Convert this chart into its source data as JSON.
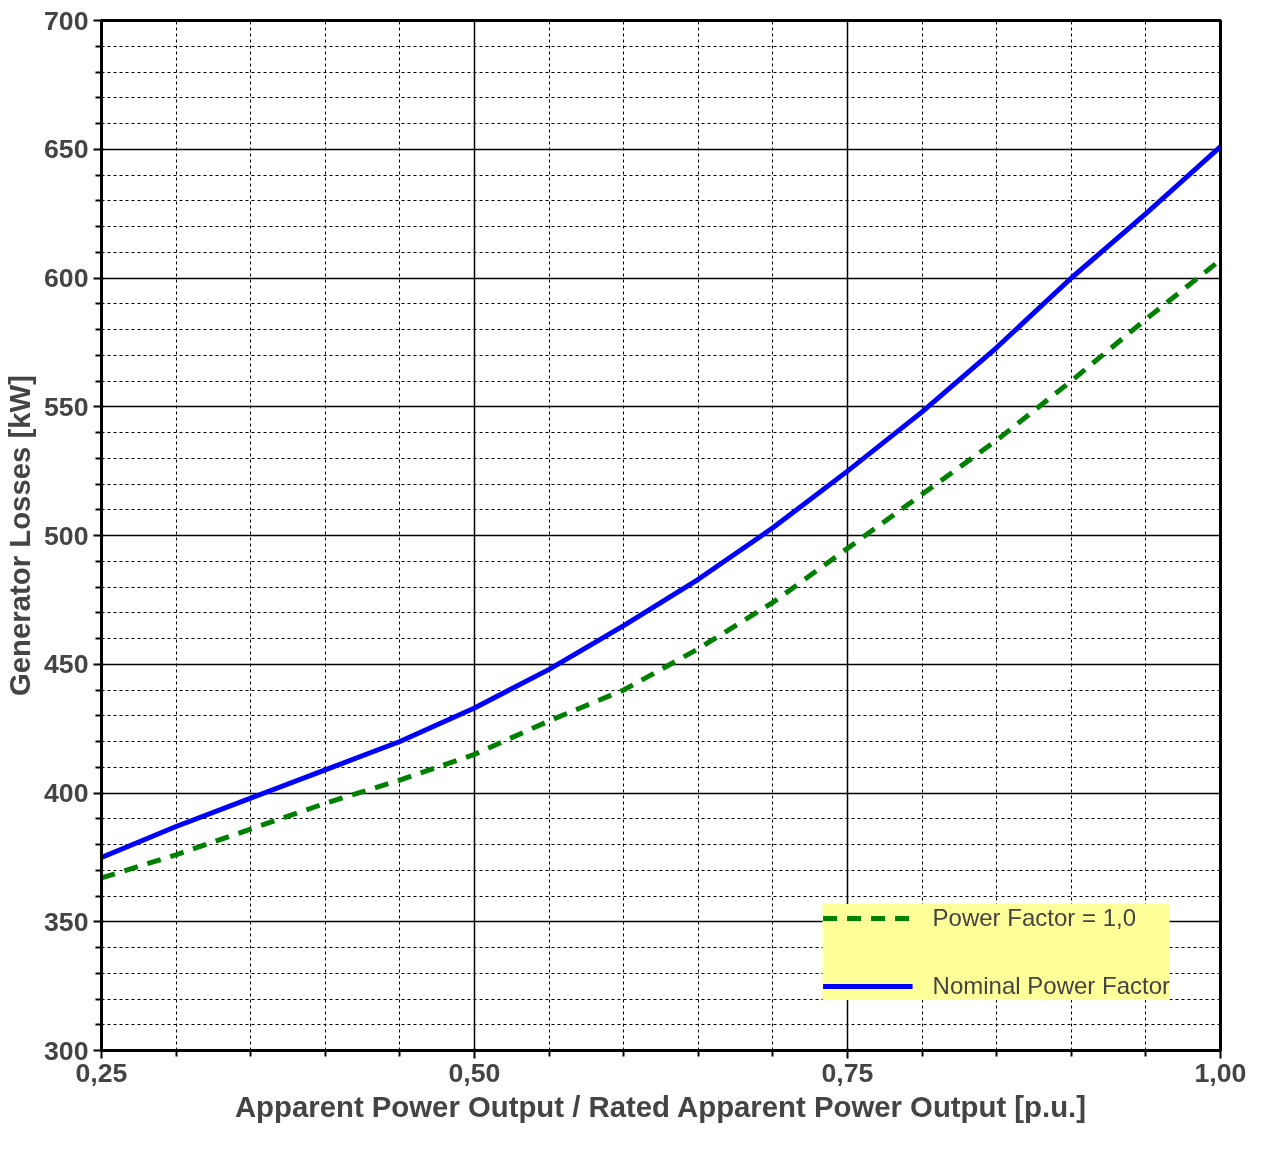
{
  "chart_data": {
    "type": "line",
    "xlabel": "Apparent Power Output / Rated Apparent Power Output [p.u.]",
    "ylabel": "Generator Losses [kW]",
    "x": [
      0.25,
      0.3,
      0.35,
      0.4,
      0.45,
      0.5,
      0.55,
      0.6,
      0.65,
      0.7,
      0.75,
      0.8,
      0.85,
      0.9,
      0.95,
      1.0
    ],
    "series": [
      {
        "name": "Power Factor = 1,0",
        "color": "#008000",
        "line_style": "dashed",
        "values": [
          367,
          376,
          386,
          396,
          405,
          415,
          428,
          440,
          456,
          474,
          495,
          516,
          537,
          560,
          584,
          607
        ]
      },
      {
        "name": "Nominal Power Factor",
        "color": "#0000ff",
        "line_style": "solid",
        "values": [
          375,
          387,
          398,
          409,
          420,
          433,
          448,
          465,
          483,
          503,
          525,
          548,
          573,
          600,
          625,
          651
        ]
      }
    ],
    "xlim": [
      0.25,
      1.0
    ],
    "ylim": [
      300,
      700
    ],
    "xticks": [
      {
        "value": 0.25,
        "label": "0,25"
      },
      {
        "value": 0.5,
        "label": "0,50"
      },
      {
        "value": 0.75,
        "label": "0,75"
      },
      {
        "value": 1.0,
        "label": "1,00"
      }
    ],
    "yticks": [
      300,
      350,
      400,
      450,
      500,
      550,
      600,
      650,
      700
    ],
    "grid": true,
    "legend": "bottom right"
  }
}
